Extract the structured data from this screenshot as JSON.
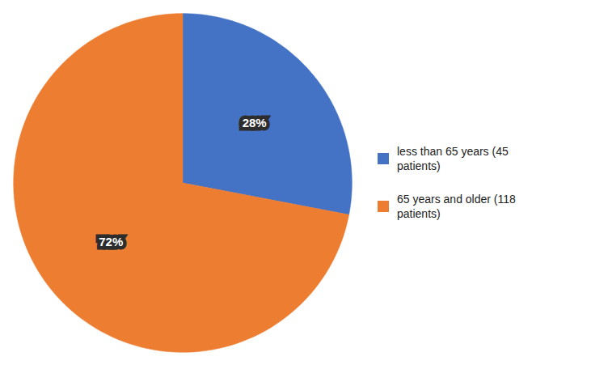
{
  "chart_data": {
    "type": "pie",
    "labels": [
      "less than 65 years (45\npatients)",
      "65 years and older (118\npatients)"
    ],
    "values": [
      28,
      72
    ],
    "value_labels": [
      "28%",
      "72%"
    ],
    "colors": [
      "#4472C4",
      "#ED7D31"
    ],
    "data_labels": true,
    "legend": "right"
  }
}
